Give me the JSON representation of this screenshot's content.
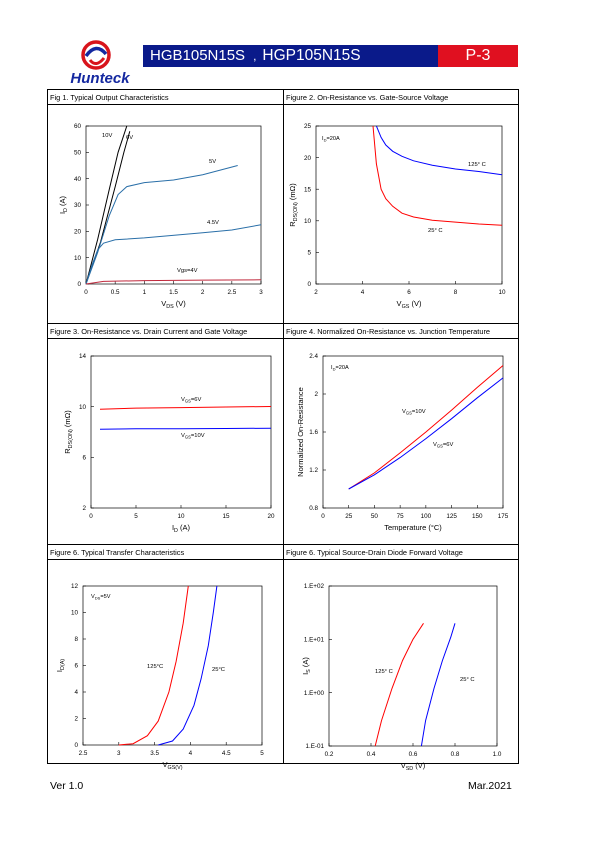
{
  "header": {
    "part_primary": "HGB105N15S",
    "separator": ",",
    "part_secondary": "HGP105N15S",
    "page_label": "P-3",
    "logo_text": "Hunteck",
    "colors": {
      "bar": "#0a1a8a",
      "page": "#e01020",
      "logo_red": "#d8141c",
      "logo_blue": "#1428a0"
    }
  },
  "footer": {
    "version": "Ver 1.0",
    "date": "Mar.2021"
  },
  "captions": {
    "fig1": "Fig 1. Typical Output Characteristics",
    "fig2": "Figure 2. On-Resistance vs. Gate-Source Voltage",
    "fig3": "Figure 3. On-Resistance vs. Drain Current and Gate Voltage",
    "fig4": "Figure 4. Normalized On-Resistance vs. Junction Temperature",
    "fig5": "Figure 6. Typical Transfer Characteristics",
    "fig6": "Figure 6. Typical Source-Drain Diode Forward Voltage"
  },
  "chart_data": [
    {
      "type": "line",
      "x_label": "V_DS (V)",
      "y_label": "I_D (A)",
      "xlim": [
        0,
        3
      ],
      "ylim": [
        0,
        60
      ],
      "x_ticks": [
        "0",
        "0.5",
        "1",
        "1.5",
        "2",
        "2.5",
        "3"
      ],
      "y_ticks": [
        "0",
        "10",
        "20",
        "30",
        "40",
        "50",
        "60"
      ],
      "series": [
        {
          "name": "10V",
          "color": "#000000",
          "x": [
            0,
            0.2,
            0.4,
            0.55,
            0.7
          ],
          "y": [
            0,
            17,
            36,
            50,
            60
          ]
        },
        {
          "name": "6V",
          "color": "#000000",
          "x": [
            0,
            0.25,
            0.5,
            0.65,
            0.75
          ],
          "y": [
            0,
            16,
            37,
            50,
            58
          ]
        },
        {
          "name": "5V",
          "color": "#2a6fa8",
          "x": [
            0,
            0.2,
            0.4,
            0.55,
            0.7,
            1.0,
            1.5,
            2.0,
            2.6
          ],
          "y": [
            0,
            12,
            26,
            34,
            37,
            38.5,
            39.5,
            41.5,
            45
          ]
        },
        {
          "name": "4.5V",
          "color": "#2a6fa8",
          "x": [
            0,
            0.1,
            0.2,
            0.3,
            0.5,
            1.0,
            2.0,
            2.5,
            3.0
          ],
          "y": [
            0,
            7,
            13,
            15.5,
            16.8,
            17.5,
            19.5,
            20.5,
            22.5
          ]
        },
        {
          "name": "Vgs=4V",
          "color": "#c0283c",
          "x": [
            0,
            0.3,
            1.0,
            2.0,
            3.0
          ],
          "y": [
            0,
            1,
            1.3,
            1.5,
            1.6
          ]
        }
      ]
    },
    {
      "type": "line",
      "x_label": "V_GS (V)",
      "y_label": "R_DS(ON) (mΩ)",
      "xlim": [
        2,
        10
      ],
      "ylim": [
        0,
        25
      ],
      "x_ticks": [
        "2",
        "4",
        "6",
        "8",
        "10"
      ],
      "y_ticks": [
        "0",
        "5",
        "10",
        "15",
        "20",
        "25"
      ],
      "annotation": "I_D=20A",
      "series": [
        {
          "name": "125° C",
          "color": "#0000ff",
          "x": [
            4.6,
            4.8,
            5.0,
            5.3,
            5.7,
            6.2,
            7.0,
            8.0,
            9.0,
            10.0
          ],
          "y": [
            25,
            23.2,
            22,
            21,
            20.2,
            19.5,
            18.8,
            18.2,
            17.8,
            17.3
          ]
        },
        {
          "name": "25° C",
          "color": "#ff0000",
          "x": [
            4.45,
            4.6,
            4.8,
            5.0,
            5.3,
            5.7,
            6.2,
            7.0,
            8.0,
            9.0,
            10.0
          ],
          "y": [
            25,
            19,
            15,
            13.5,
            12.3,
            11.2,
            10.6,
            10.1,
            9.8,
            9.5,
            9.3
          ]
        }
      ]
    },
    {
      "type": "line",
      "x_label": "I_D (A)",
      "y_label": "R_DS(ON) (mΩ)",
      "xlim": [
        0,
        20
      ],
      "ylim": [
        2,
        16
      ],
      "x_ticks": [
        "0",
        "5",
        "10",
        "15",
        "20"
      ],
      "y_ticks": [
        "2",
        "6",
        "10",
        "14"
      ],
      "series": [
        {
          "name": "V_GS=6V",
          "color": "#ff0000",
          "x": [
            1,
            5,
            10,
            15,
            20
          ],
          "y": [
            11.1,
            11.2,
            11.25,
            11.3,
            11.35
          ]
        },
        {
          "name": "V_GS=10V",
          "color": "#0000ff",
          "x": [
            1,
            5,
            10,
            15,
            20
          ],
          "y": [
            9.25,
            9.3,
            9.3,
            9.32,
            9.35
          ]
        }
      ]
    },
    {
      "type": "line",
      "x_label": "Temperature (°C)",
      "y_label": "Normalized On-Resistance",
      "xlim": [
        0,
        175
      ],
      "ylim": [
        0.8,
        2.4
      ],
      "x_ticks": [
        "0",
        "25",
        "50",
        "75",
        "100",
        "125",
        "150",
        "175"
      ],
      "y_ticks": [
        "0.8",
        "1.2",
        "1.6",
        "2",
        "2.4"
      ],
      "annotation": "I_D=20A",
      "series": [
        {
          "name": "V_GS=10V",
          "color": "#ff0000",
          "x": [
            25,
            50,
            75,
            100,
            125,
            150,
            175
          ],
          "y": [
            1.0,
            1.17,
            1.38,
            1.6,
            1.83,
            2.07,
            2.3
          ]
        },
        {
          "name": "V_GS=6V",
          "color": "#0000ff",
          "x": [
            25,
            50,
            75,
            100,
            125,
            150,
            175
          ],
          "y": [
            1.0,
            1.15,
            1.33,
            1.53,
            1.74,
            1.96,
            2.17
          ]
        }
      ]
    },
    {
      "type": "line",
      "x_label": "V_GS(V)",
      "y_label": "I_D(A)",
      "xlim": [
        2.5,
        5
      ],
      "ylim": [
        0,
        12
      ],
      "x_ticks": [
        "2.5",
        "3",
        "3.5",
        "4",
        "4.5",
        "5"
      ],
      "y_ticks": [
        "0",
        "2",
        "4",
        "6",
        "8",
        "10",
        "12"
      ],
      "annotation": "V_DS=5V",
      "series": [
        {
          "name": "125°C",
          "color": "#ff0000",
          "x": [
            3.0,
            3.2,
            3.4,
            3.55,
            3.7,
            3.8,
            3.9,
            3.97
          ],
          "y": [
            0,
            0.1,
            0.7,
            1.8,
            4,
            6.3,
            9.2,
            12
          ]
        },
        {
          "name": "25°C",
          "color": "#0000ff",
          "x": [
            3.55,
            3.75,
            3.9,
            4.05,
            4.15,
            4.25,
            4.32,
            4.37
          ],
          "y": [
            0,
            0.3,
            1.2,
            3,
            5,
            7.5,
            10,
            12
          ]
        }
      ]
    },
    {
      "type": "line",
      "x_label": "V_SD (V)",
      "y_label": "I_S (A)",
      "xlim": [
        0.2,
        1.0
      ],
      "y_log": true,
      "ylim": [
        0.1,
        100
      ],
      "x_ticks": [
        "0.2",
        "0.4",
        "0.6",
        "0.8",
        "1.0"
      ],
      "y_ticks": [
        "1.E-01",
        "1.E+00",
        "1.E+01",
        "1.E+02"
      ],
      "series": [
        {
          "name": "125° C",
          "color": "#ff0000",
          "x": [
            0.42,
            0.45,
            0.5,
            0.55,
            0.6,
            0.65
          ],
          "y": [
            0.1,
            0.3,
            1.2,
            4,
            10,
            20
          ]
        },
        {
          "name": "25° C",
          "color": "#0000ff",
          "x": [
            0.64,
            0.66,
            0.7,
            0.74,
            0.78,
            0.8
          ],
          "y": [
            0.1,
            0.3,
            1.2,
            4,
            11,
            20
          ]
        }
      ]
    }
  ]
}
